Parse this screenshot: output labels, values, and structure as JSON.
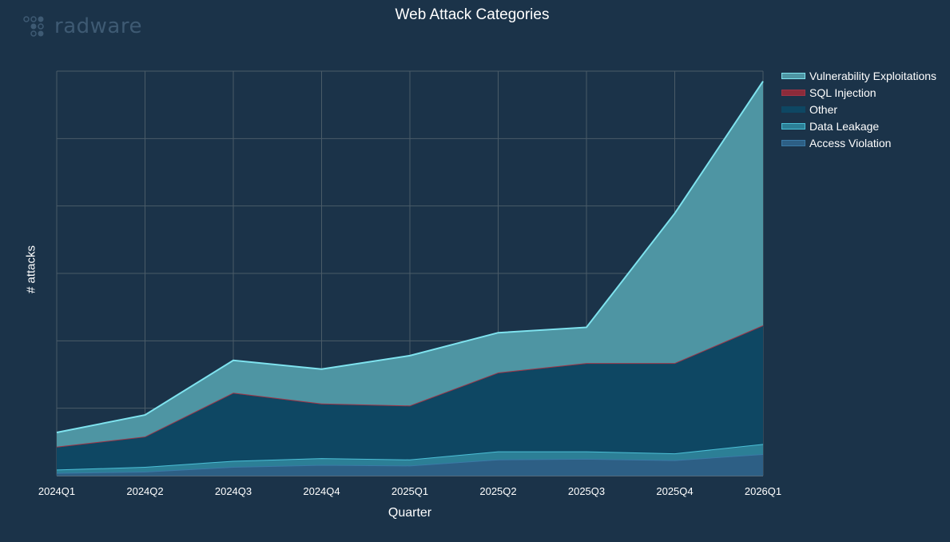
{
  "brand": {
    "name": "radware"
  },
  "chart_data": {
    "type": "area",
    "stacked": true,
    "title": "Web Attack Categories",
    "xlabel": "Quarter",
    "ylabel": "# attacks",
    "categories": [
      "2024Q1",
      "2024Q2",
      "2024Q3",
      "2024Q4",
      "2025Q1",
      "2025Q2",
      "2025Q3",
      "2025Q4",
      "2026Q1"
    ],
    "ylim": [
      0,
      600
    ],
    "grid": true,
    "y_tick_labels_shown": false,
    "legend_position": "top-right",
    "series": [
      {
        "name": "Access Violation",
        "values": [
          4,
          6,
          13,
          16,
          15,
          24,
          25,
          23,
          32
        ],
        "color": "#2d5f85",
        "line": "#3a7aa6"
      },
      {
        "name": "Data Leakage",
        "values": [
          5,
          7,
          9,
          10,
          9,
          12,
          11,
          10,
          15
        ],
        "color": "#2c7f96",
        "line": "#4bbfd6"
      },
      {
        "name": "Other",
        "values": [
          33,
          44,
          100,
          80,
          79,
          116,
          130,
          133,
          175
        ],
        "color": "#0e4763",
        "line": "#0e4763"
      },
      {
        "name": "SQL Injection",
        "values": [
          1,
          1,
          1,
          1,
          1,
          1,
          1,
          1,
          1
        ],
        "color": "#8c2b3a",
        "line": "#9e3446"
      },
      {
        "name": "Vulnerability Exploitations",
        "values": [
          21,
          32,
          48,
          51,
          74,
          59,
          53,
          222,
          362
        ],
        "color": "#4e95a3",
        "line": "#7fe3ef"
      }
    ],
    "legend_order": [
      "Vulnerability Exploitations",
      "SQL Injection",
      "Other",
      "Data Leakage",
      "Access Violation"
    ]
  }
}
